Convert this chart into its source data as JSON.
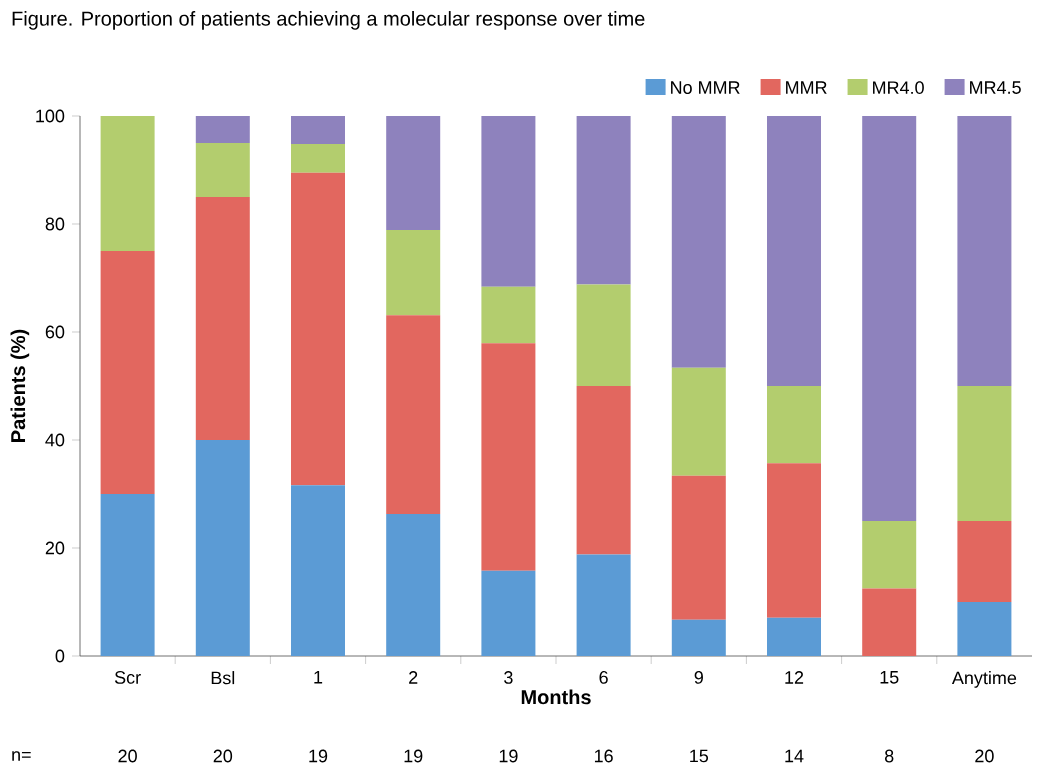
{
  "chart_data": {
    "type": "bar",
    "stacked": true,
    "title": "Figure. Proportion of patients achieving a molecular response over time",
    "xlabel": "Months",
    "ylabel": "Patients (%)",
    "categories": [
      "Scr",
      "Bsl",
      "1",
      "2",
      "3",
      "6",
      "9",
      "12",
      "15",
      "Anytime"
    ],
    "series": [
      {
        "name": "No MMR",
        "color": "#5b9bd5",
        "values": [
          30,
          40,
          31.6,
          26.3,
          15.8,
          18.8,
          6.7,
          7.1,
          0,
          10
        ]
      },
      {
        "name": "MMR",
        "color": "#e2675f",
        "values": [
          45,
          45,
          57.9,
          36.8,
          42.1,
          31.2,
          26.7,
          28.6,
          12.5,
          15
        ]
      },
      {
        "name": "MR4.0",
        "color": "#b3cd6e",
        "values": [
          25,
          10,
          5.3,
          15.8,
          10.5,
          18.8,
          20,
          14.3,
          12.5,
          25
        ]
      },
      {
        "name": "MR4.5",
        "color": "#8e82bd",
        "values": [
          0,
          5,
          5.2,
          21.1,
          31.6,
          31.2,
          46.6,
          50,
          75,
          50
        ]
      }
    ],
    "ylim": [
      0,
      100
    ],
    "yticks": [
      0,
      20,
      40,
      60,
      80,
      100
    ],
    "grid": false,
    "legend": "top right",
    "annotations": [
      "n=",
      "20",
      "20",
      "19",
      "19",
      "19",
      "16",
      "15",
      "14",
      "8",
      "20"
    ]
  }
}
